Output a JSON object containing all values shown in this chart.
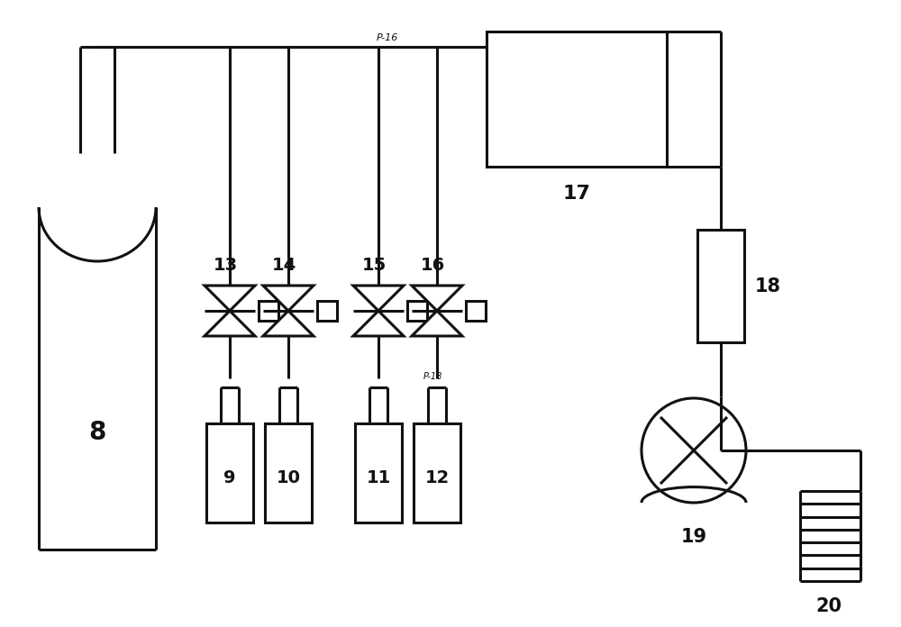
{
  "bg": "#ffffff",
  "lc": "#111111",
  "lw": 2.2,
  "fig_w": 10.0,
  "fig_h": 6.96
}
